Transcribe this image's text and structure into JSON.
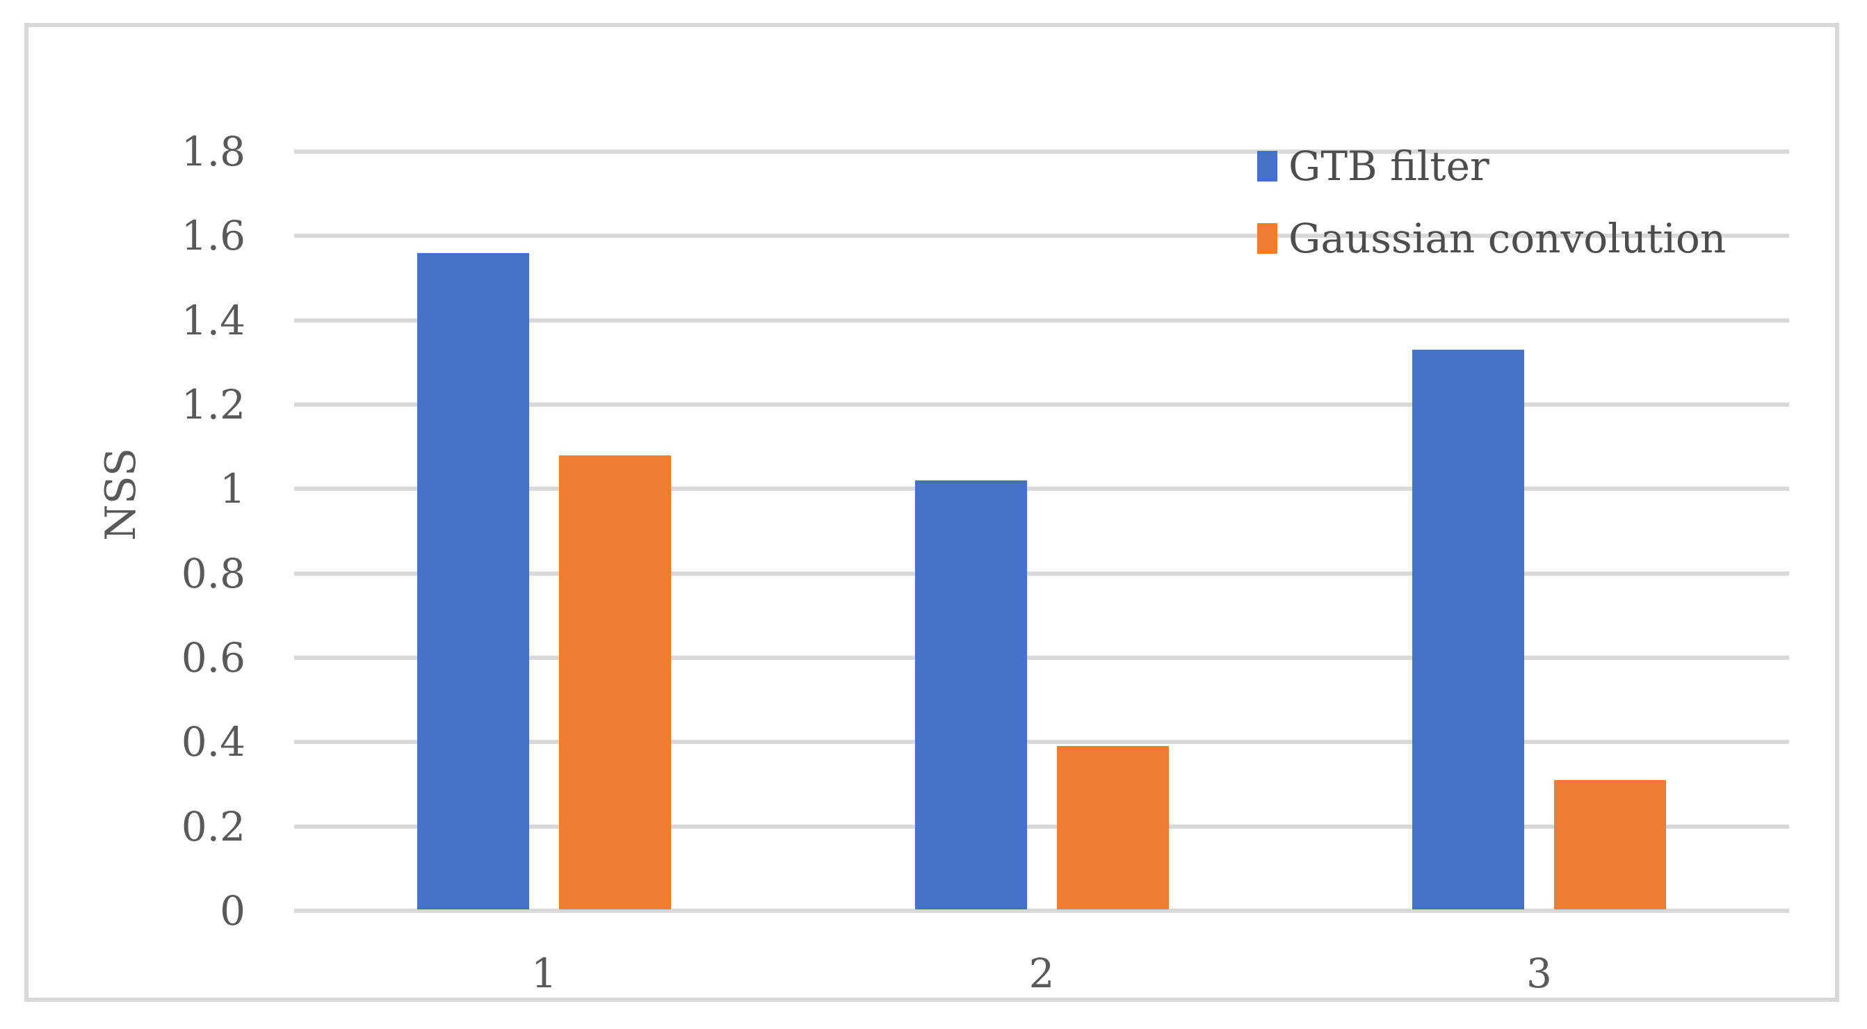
{
  "figure": {
    "background": "#ffffff",
    "border_color": "#d9d9d9"
  },
  "chart_data": {
    "type": "bar",
    "title": "",
    "categories": [
      "1",
      "2",
      "3"
    ],
    "series": [
      {
        "name": "GTB filter",
        "color": "#4472C4",
        "values": [
          1.56,
          1.02,
          1.33
        ]
      },
      {
        "name": "Gaussian convolution",
        "color": "#ED7D31",
        "values": [
          1.08,
          0.39,
          0.31
        ]
      }
    ],
    "xlabel": "",
    "ylabel": "NSS",
    "ylim": [
      0,
      1.8
    ],
    "ytick_step": 0.2,
    "yticks": [
      "0",
      "0.2",
      "0.4",
      "0.6",
      "0.8",
      "1",
      "1.2",
      "1.4",
      "1.6",
      "1.8"
    ],
    "grid": true,
    "gridline_color": "#d9d9d9",
    "legend_position": "top-right",
    "tick_text_color": "#595959",
    "legend_text_color": "#4d4d4d"
  }
}
